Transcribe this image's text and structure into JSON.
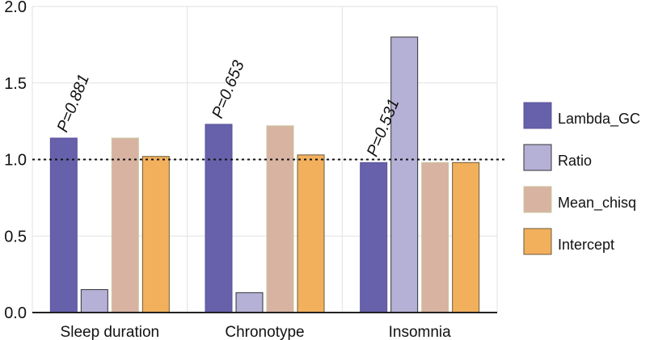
{
  "chart_data": {
    "type": "bar",
    "title": "",
    "xlabel": "",
    "ylabel": "",
    "ylim": [
      0,
      2.0
    ],
    "yticks": [
      "0.0",
      "0.5",
      "1.0",
      "1.5",
      "2.0"
    ],
    "grid": true,
    "reference_line": 1.0,
    "categories": [
      "Sleep duration",
      "Chronotype",
      "Insomnia"
    ],
    "series": [
      {
        "name": "Lambda_GC",
        "values": [
          1.14,
          1.23,
          0.98
        ]
      },
      {
        "name": "Ratio",
        "values": [
          0.15,
          0.13,
          1.8
        ]
      },
      {
        "name": "Mean_chisq",
        "values": [
          1.14,
          1.22,
          0.98
        ]
      },
      {
        "name": "Intercept",
        "values": [
          1.02,
          1.03,
          0.98
        ]
      }
    ],
    "annotations": [
      "P=0.881",
      "P=0.653",
      "P=0.531"
    ],
    "legend_position": "right",
    "colors": {
      "Lambda_GC": "#6760ab",
      "Ratio": "#b5b0d6",
      "Mean_chisq": "#d8b3a2",
      "Intercept": "#f2b05d"
    }
  }
}
